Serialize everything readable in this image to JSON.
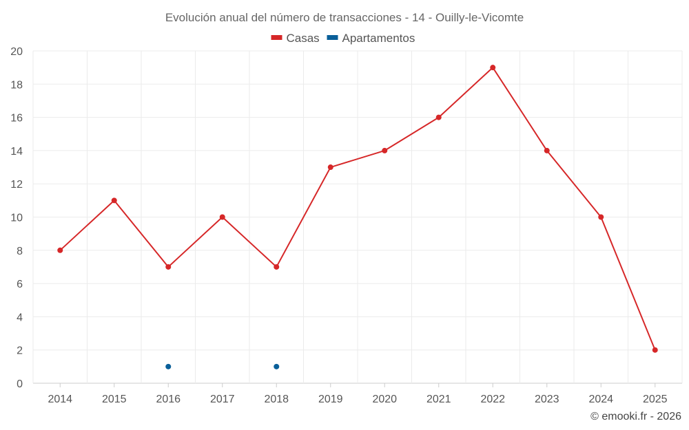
{
  "chart_data": {
    "type": "line",
    "title": "Evolución anual del número de transacciones - 14 - Ouilly-le-Vicomte",
    "categories": [
      "2014",
      "2015",
      "2016",
      "2017",
      "2018",
      "2019",
      "2020",
      "2021",
      "2022",
      "2023",
      "2024",
      "2025"
    ],
    "ylim": [
      0,
      20
    ],
    "yticks": [
      0,
      2,
      4,
      6,
      8,
      10,
      12,
      14,
      16,
      18,
      20
    ],
    "grid": true,
    "legend_position": "top-center",
    "series": [
      {
        "name": "Casas",
        "color": "#d62728",
        "values": [
          8,
          11,
          7,
          10,
          7,
          13,
          14,
          16,
          19,
          14,
          10,
          2
        ]
      },
      {
        "name": "Apartamentos",
        "color": "#0a5f99",
        "values": [
          null,
          null,
          1,
          null,
          1,
          null,
          null,
          null,
          null,
          null,
          null,
          null
        ]
      }
    ],
    "credit": "© emooki.fr - 2026"
  }
}
